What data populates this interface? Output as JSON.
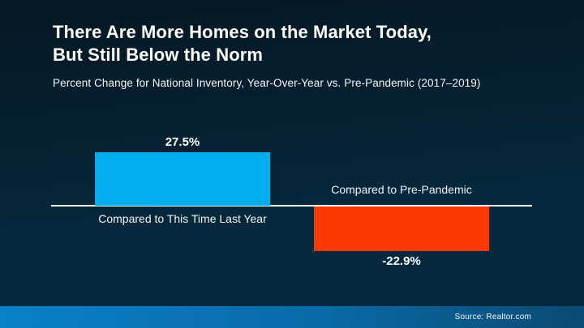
{
  "header": {
    "title_line1": "There Are More Homes on the Market Today,",
    "title_line2": "But Still Below the Norm",
    "subtitle": "Percent Change for National Inventory, Year-Over-Year vs. Pre-Pandemic (2017–2019)"
  },
  "chart_data": {
    "type": "bar",
    "title": "There Are More Homes on the Market Today, But Still Below the Norm",
    "subtitle": "Percent Change for National Inventory, Year-Over-Year vs. Pre-Pandemic (2017–2019)",
    "categories": [
      "Compared to This Time Last Year",
      "Compared to Pre-Pandemic"
    ],
    "values": [
      27.5,
      -22.9
    ],
    "value_labels": [
      "27.5%",
      "-22.9%"
    ],
    "bar_colors": [
      "#00aeef",
      "#fc3900"
    ],
    "baseline": 0,
    "ylim": [
      -30,
      32
    ],
    "grid": false,
    "legend": "none",
    "orientation": "vertical",
    "axis_line_color": "#eef3f6"
  },
  "footer": {
    "source": "Source: Realtor.com"
  },
  "colors": {
    "background_top": "#061823",
    "background_bottom": "#05283d",
    "footer_gradient_left": "#0a81c9",
    "footer_gradient_right": "#0b4a73",
    "positive_bar": "#00aeef",
    "negative_bar": "#fc3900",
    "text": "#ffffff"
  }
}
